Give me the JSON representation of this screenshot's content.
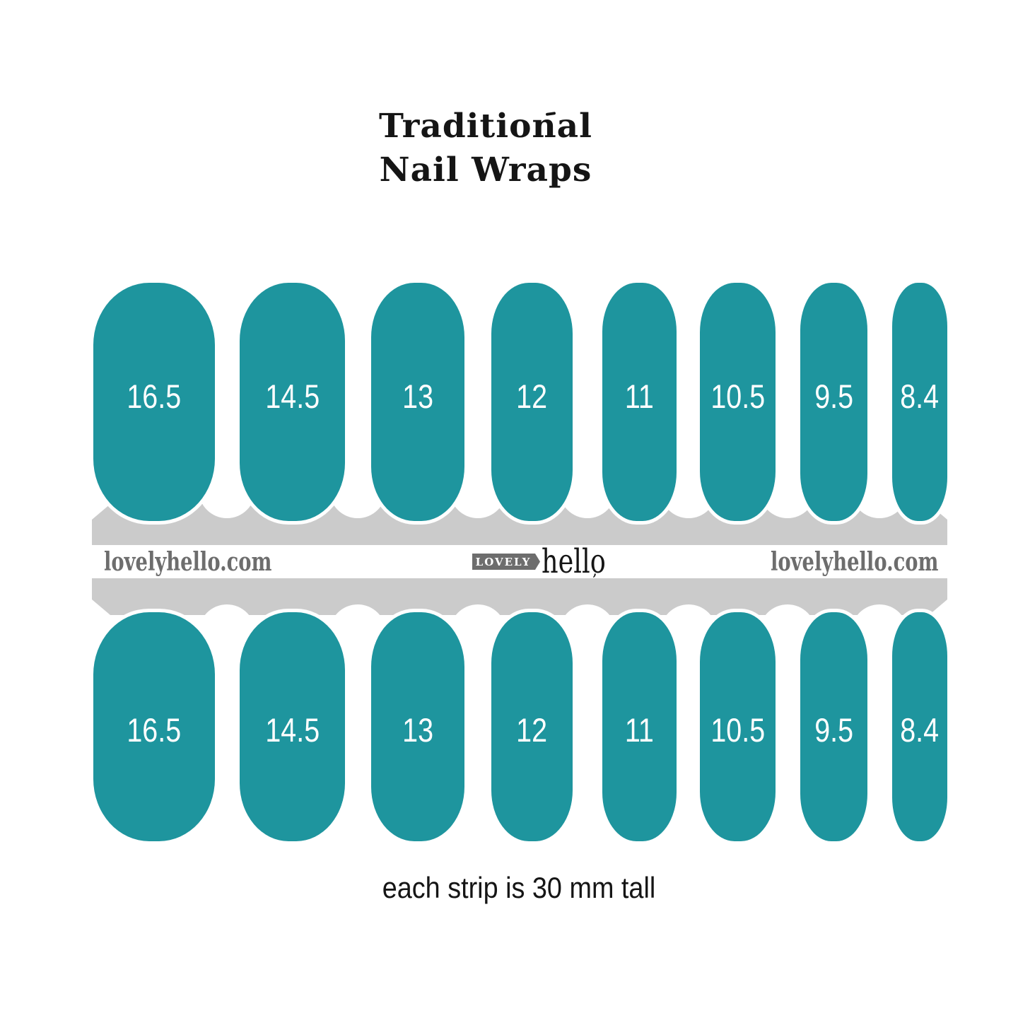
{
  "title": {
    "line1": "Traditional",
    "line2": "Nail Wraps"
  },
  "caption": "each strip is 30 mm tall",
  "strip": {
    "sizes_mm": [
      "16.5",
      "14.5",
      "13",
      "12",
      "11",
      "10.5",
      "9.5",
      "8.4"
    ],
    "row_count": 2,
    "watermark_left": "lovelyhello.com",
    "watermark_right": "lovelyhello.com",
    "logo": {
      "tag": "LOVELY",
      "name": "hello",
      "flourish": ","
    },
    "colors": {
      "nail_teal": "#1E959E",
      "band_gray": "#CBCBCB",
      "watermark_gray": "#6D6D6D",
      "ink_black": "#151515"
    }
  }
}
